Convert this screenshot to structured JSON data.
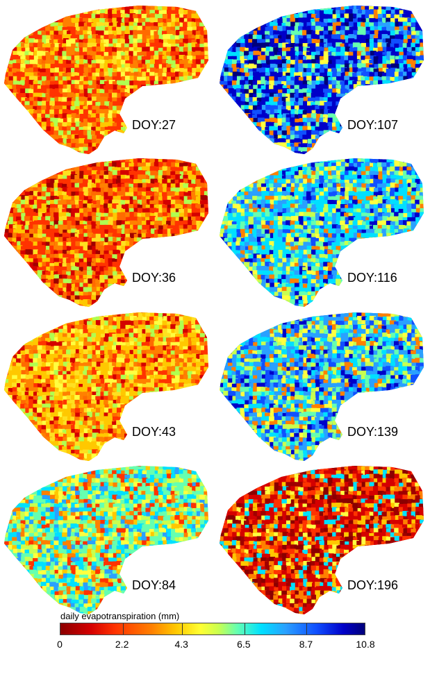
{
  "panels": [
    {
      "label": "DOY:27",
      "palette": [
        "#ff3300",
        "#ff8000",
        "#ffc800",
        "#ff6a00",
        "#ffe020",
        "#d40000",
        "#ffff40",
        "#b0ff50"
      ]
    },
    {
      "label": "DOY:107",
      "palette": [
        "#0000c8",
        "#1050ff",
        "#2aa0ff",
        "#00e0ff",
        "#66ffb0",
        "#ffff40",
        "#ff8000",
        "#00007a"
      ]
    },
    {
      "label": "DOY:36",
      "palette": [
        "#ff3300",
        "#d40000",
        "#ff8000",
        "#ffc800",
        "#ff6a00",
        "#ffe020",
        "#b0ff50",
        "#a00000"
      ]
    },
    {
      "label": "DOY:116",
      "palette": [
        "#00e0ff",
        "#2aa0ff",
        "#66ffb0",
        "#c8ff50",
        "#ffff40",
        "#1050ff",
        "#ff8000",
        "#0000c8"
      ]
    },
    {
      "label": "DOY:43",
      "palette": [
        "#ffc800",
        "#ff8000",
        "#ffe020",
        "#ff3300",
        "#ffff40",
        "#d40000",
        "#b0ff50",
        "#ff6a00"
      ]
    },
    {
      "label": "DOY:139",
      "palette": [
        "#2aa0ff",
        "#00e0ff",
        "#1050ff",
        "#66ffb0",
        "#ffff40",
        "#ff8000",
        "#0000c8",
        "#c8ff50"
      ]
    },
    {
      "label": "DOY:84",
      "palette": [
        "#66ffb0",
        "#00e0ff",
        "#c8ff50",
        "#ffff40",
        "#ffc800",
        "#ff8000",
        "#2aa0ff",
        "#ff3300"
      ]
    },
    {
      "label": "DOY:196",
      "palette": [
        "#d40000",
        "#ff3300",
        "#a00000",
        "#ff8000",
        "#ffc800",
        "#8b0000",
        "#00e0ff",
        "#ffff40"
      ]
    }
  ],
  "legend": {
    "title": "daily evapotranspiration (mm)",
    "ticks": [
      "0",
      "2.2",
      "4.3",
      "6.5",
      "8.7",
      "10.8"
    ],
    "min": 0,
    "max": 10.8
  },
  "colors": {
    "scale": [
      "#8b0000",
      "#d40000",
      "#ff3300",
      "#ff8000",
      "#ffc800",
      "#ffff33",
      "#c8ff50",
      "#66ffb0",
      "#00e0ff",
      "#2aa0ff",
      "#1050ff",
      "#0000c8",
      "#00007a"
    ]
  }
}
